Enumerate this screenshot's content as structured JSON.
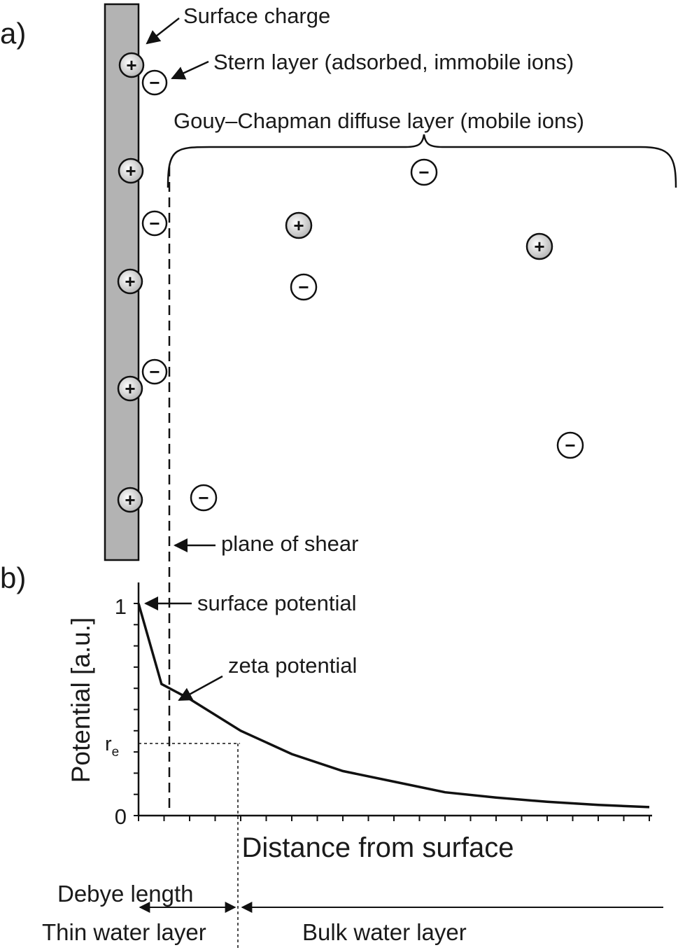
{
  "panel_a": {
    "label": "a)",
    "surface_charge": "Surface charge",
    "stern_layer": "Stern layer (adsorbed, immobile ions)",
    "diffuse_layer": "Gouy–Chapman diffuse layer (mobile ions)",
    "plane_of_shear": "plane of shear",
    "positive_sign": "+",
    "negative_sign": "−"
  },
  "panel_b": {
    "label": "b)",
    "surface_potential": "surface potential",
    "zeta_potential": "zeta potential"
  },
  "bottom": {
    "debye_length": "Debye length",
    "thin_water_layer": "Thin water layer",
    "bulk_water_layer": "Bulk water layer"
  },
  "chart_data": {
    "type": "line",
    "xlabel": "Distance from surface",
    "ylabel": "Potential [a.u.]",
    "yticks": [
      "1",
      "0"
    ],
    "re_label": "r",
    "re_subscript": "e",
    "ylim": [
      0,
      1.1
    ],
    "series": [
      {
        "x": [
          0,
          0.45,
          1,
          2,
          3,
          4,
          5,
          6,
          7,
          8,
          9,
          10
        ],
        "y": [
          1.0,
          0.62,
          0.55,
          0.4,
          0.29,
          0.21,
          0.16,
          0.11,
          0.085,
          0.065,
          0.05,
          0.04
        ]
      }
    ]
  },
  "colors": {
    "surface_fill": "#b3b3b3",
    "ion_positive": "#d9d9d9",
    "ion_negative": "#ffffff"
  }
}
